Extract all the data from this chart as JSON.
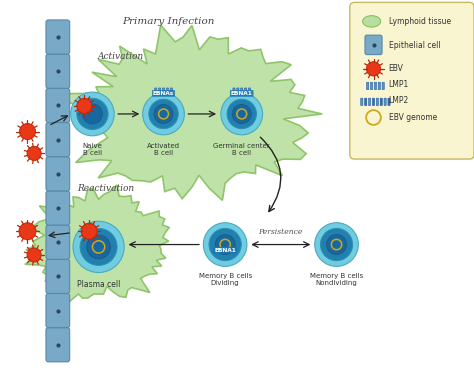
{
  "bg_color": "#ffffff",
  "lymphoid_color": "#b8dfa0",
  "lymphoid_edge": "#88c060",
  "cell_outer_color": "#70cce0",
  "cell_inner_color": "#2080b0",
  "cell_nucleus_color": "#1868a0",
  "cell_outer_color2": "#80d0e8",
  "cell_inner_color2": "#1878b8",
  "ebv_color": "#e83818",
  "ebv_spike_color": "#b82808",
  "epithelial_color": "#78aac8",
  "epithelial_edge": "#5888a8",
  "legend_bg": "#f8f5d0",
  "legend_edge": "#c8b860",
  "arrow_color": "#222222",
  "label_color": "#333333",
  "primary_infection_label": "Primary Infection",
  "activation_label": "Activation",
  "reactivation_label": "Reactivation",
  "persistence_label": "Persistence",
  "naive_label": "Naive\nB cell",
  "activated_label": "Activated\nB cell",
  "germinal_label": "Germinal center\nB cell",
  "plasma_label": "Plasma cell",
  "memory_dividing_label": "Memory B cells\nDividing",
  "memory_nondividing_label": "Memory B cells\nNondividing",
  "ebnas_label": "EBNAs",
  "ebna1_label": "EBNA1",
  "legend_items": [
    "Lymphoid tissue",
    "Epithelial cell",
    "EBV",
    "LMP1",
    "LMP2",
    "EBV genome"
  ],
  "lmp_bar_color": "#5590d0",
  "lmp_bar_color2": "#3368b0",
  "genome_color": "#d0a820"
}
